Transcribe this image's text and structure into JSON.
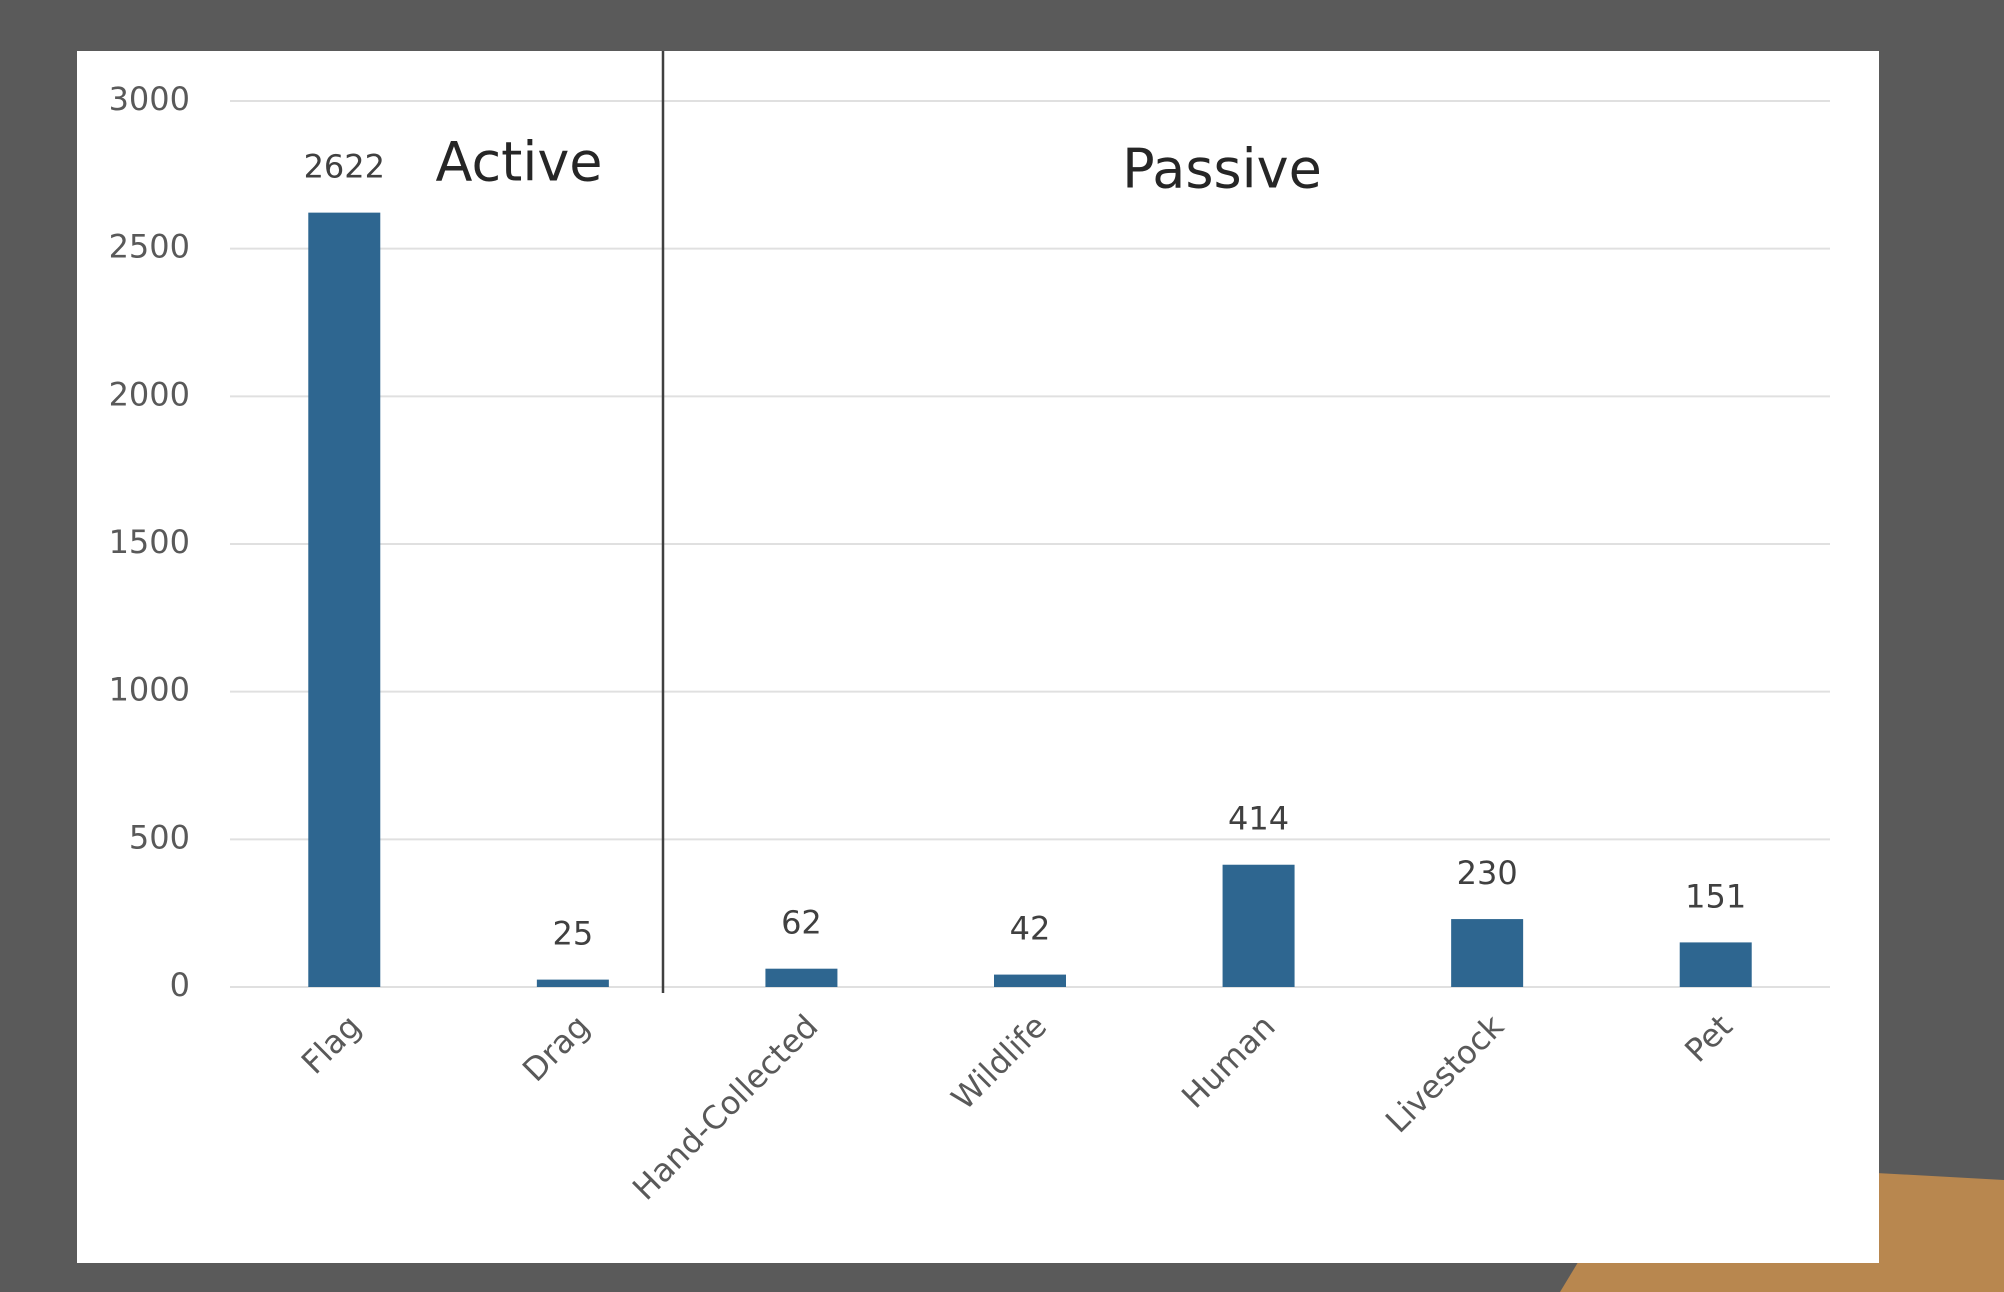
{
  "chart_data": {
    "type": "bar",
    "categories": [
      "Flag",
      "Drag",
      "Hand-Collected",
      "Wildlife",
      "Human",
      "Livestock",
      "Pet"
    ],
    "values": [
      2622,
      25,
      62,
      42,
      414,
      230,
      151
    ],
    "color": "#2e6690",
    "ylim": [
      0,
      3000
    ],
    "yticks": [
      0,
      500,
      1000,
      1500,
      2000,
      2500,
      3000
    ],
    "grid": true,
    "annotations": [
      "Active",
      "Passive"
    ]
  }
}
